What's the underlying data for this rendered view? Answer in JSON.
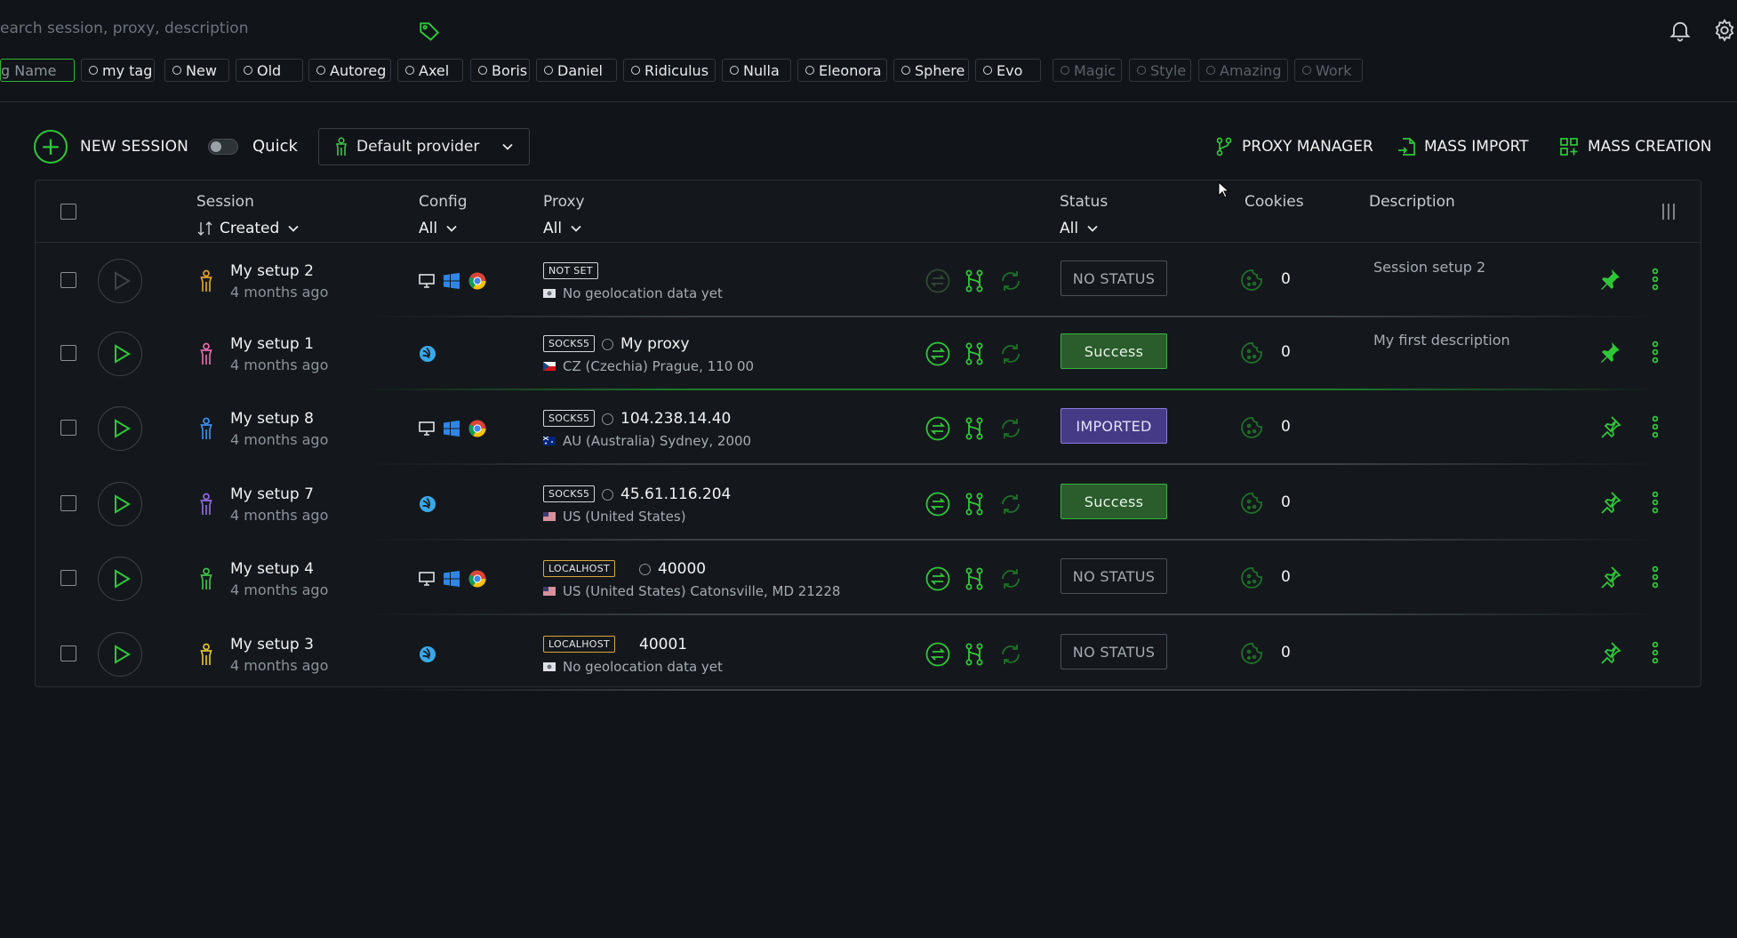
{
  "search": {
    "placeholder": "earch session, proxy, description"
  },
  "tags": [
    {
      "label": "g Name",
      "kind": "input"
    },
    {
      "label": "my tag",
      "kind": "active"
    },
    {
      "label": "New",
      "kind": "active"
    },
    {
      "label": "Old",
      "kind": "active"
    },
    {
      "label": "Autoreg",
      "kind": "active"
    },
    {
      "label": "Axel",
      "kind": "active"
    },
    {
      "label": "Boris",
      "kind": "active"
    },
    {
      "label": "Daniel",
      "kind": "active"
    },
    {
      "label": "Ridiculus",
      "kind": "active"
    },
    {
      "label": "Nulla",
      "kind": "active"
    },
    {
      "label": "Eleonora",
      "kind": "active"
    },
    {
      "label": "Sphere",
      "kind": "active"
    },
    {
      "label": "Evo",
      "kind": "active"
    },
    {
      "label": "Magic",
      "kind": "dim"
    },
    {
      "label": "Style",
      "kind": "dim"
    },
    {
      "label": "Amazing",
      "kind": "dim"
    },
    {
      "label": "Work",
      "kind": "dim"
    }
  ],
  "toolbar": {
    "new_session": "NEW SESSION",
    "quick": "Quick",
    "quick_on": false,
    "provider": "Default provider",
    "proxy_manager": "PROXY MANAGER",
    "mass_import": "MASS IMPORT",
    "mass_creation": "MASS CREATION"
  },
  "table": {
    "headers": {
      "session": "Session",
      "session_sort": "Created",
      "config": "Config",
      "config_filter": "All",
      "proxy": "Proxy",
      "proxy_filter": "All",
      "status": "Status",
      "status_filter": "All",
      "cookies": "Cookies",
      "description": "Description"
    },
    "rows": [
      {
        "name": "My setup 2",
        "time": "4 months ago",
        "person_color": "#e0a030",
        "config": "desktop",
        "proxy_type": "NOT SET",
        "proxy_value": "",
        "proxy_ring": false,
        "geo": "No geolocation data yet",
        "flag": "none",
        "status": "NO STATUS",
        "status_kind": "none",
        "cookies": "0",
        "description": "Session setup 2",
        "pinned": true,
        "play_active": false
      },
      {
        "name": "My setup 1",
        "time": "4 months ago",
        "person_color": "#e06aa8",
        "config": "mobile",
        "proxy_type": "SOCKS5",
        "proxy_value": "My proxy",
        "proxy_ring": true,
        "geo": "CZ (Czechia) Prague, 110 00",
        "flag": "cz",
        "status": "Success",
        "status_kind": "success",
        "cookies": "0",
        "description": "My first description",
        "pinned": true,
        "play_active": true
      },
      {
        "name": "My setup 8",
        "time": "4 months ago",
        "person_color": "#3b8ee8",
        "config": "desktop",
        "proxy_type": "SOCKS5",
        "proxy_value": "104.238.14.40",
        "proxy_ring": true,
        "geo": "AU (Australia) Sydney, 2000",
        "flag": "au",
        "status": "IMPORTED",
        "status_kind": "imported",
        "cookies": "0",
        "description": "",
        "pinned": false,
        "play_active": true
      },
      {
        "name": "My setup 7",
        "time": "4 months ago",
        "person_color": "#8e6ae0",
        "config": "mobile",
        "proxy_type": "SOCKS5",
        "proxy_value": "45.61.116.204",
        "proxy_ring": true,
        "geo": "US (United States)",
        "flag": "us",
        "status": "Success",
        "status_kind": "success",
        "cookies": "0",
        "description": "",
        "pinned": false,
        "play_active": true
      },
      {
        "name": "My setup 4",
        "time": "4 months ago",
        "person_color": "#3fc04a",
        "config": "desktop",
        "proxy_type": "LOCALHOST",
        "proxy_value": "40000",
        "proxy_ring": true,
        "geo": "US (United States) Catonsville, MD 21228",
        "flag": "us",
        "status": "NO STATUS",
        "status_kind": "none",
        "cookies": "0",
        "description": "",
        "pinned": false,
        "play_active": true
      },
      {
        "name": "My setup 3",
        "time": "4 months ago",
        "person_color": "#e0c030",
        "config": "mobile",
        "proxy_type": "LOCALHOST",
        "proxy_value": "40001",
        "proxy_ring": false,
        "geo": "No geolocation data yet",
        "flag": "none",
        "status": "NO STATUS",
        "status_kind": "none",
        "cookies": "0",
        "description": "",
        "pinned": false,
        "play_active": true
      }
    ]
  },
  "colors": {
    "accent": "#2fc739",
    "background": "#111418"
  },
  "icons": [
    "search-icon",
    "tag-icon",
    "bell-icon",
    "gear-icon",
    "plus-icon",
    "chevron-down-icon",
    "proxy-manager-icon",
    "mass-import-icon",
    "mass-creation-icon",
    "columns-icon",
    "play-icon",
    "person-icon",
    "desktop-icon",
    "windows-icon",
    "chrome-icon",
    "mobile-os-icon",
    "swap-icon",
    "branch-icon",
    "refresh-icon",
    "cookie-icon",
    "pin-icon",
    "more-vert-icon"
  ]
}
